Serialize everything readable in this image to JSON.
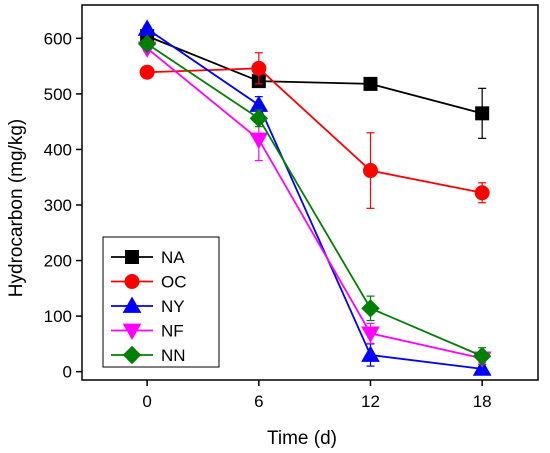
{
  "chart_data": {
    "type": "line",
    "xlabel": "Time (d)",
    "ylabel": "Hydrocarbon (mg/kg)",
    "x": [
      0,
      6,
      12,
      18
    ],
    "xlim": [
      -3.5,
      21
    ],
    "ylim": [
      -15,
      660
    ],
    "xticks": [
      0,
      6,
      12,
      18
    ],
    "yticks": [
      0,
      100,
      200,
      300,
      400,
      500,
      600
    ],
    "legend_position": "bottom-left",
    "grid": false,
    "series": [
      {
        "name": "NA",
        "color": "#000000",
        "marker": "square",
        "y": [
          604,
          523,
          518,
          465
        ],
        "err": [
          12,
          8,
          6,
          45
        ]
      },
      {
        "name": "OC",
        "color": "#FF0000",
        "marker": "circle",
        "y": [
          539,
          546,
          362,
          322
        ],
        "err": [
          0,
          28,
          68,
          18
        ]
      },
      {
        "name": "NY",
        "color": "#0000FF",
        "marker": "triangle-up",
        "y": [
          617,
          480,
          30,
          5
        ],
        "err": [
          5,
          15,
          20,
          0
        ]
      },
      {
        "name": "NF",
        "color": "#FF00FF",
        "marker": "triangle-down",
        "y": [
          582,
          418,
          69,
          24
        ],
        "err": [
          5,
          38,
          18,
          8
        ]
      },
      {
        "name": "NN",
        "color": "#008000",
        "marker": "diamond",
        "y": [
          590,
          456,
          114,
          28
        ],
        "err": [
          5,
          15,
          22,
          15
        ]
      }
    ]
  }
}
